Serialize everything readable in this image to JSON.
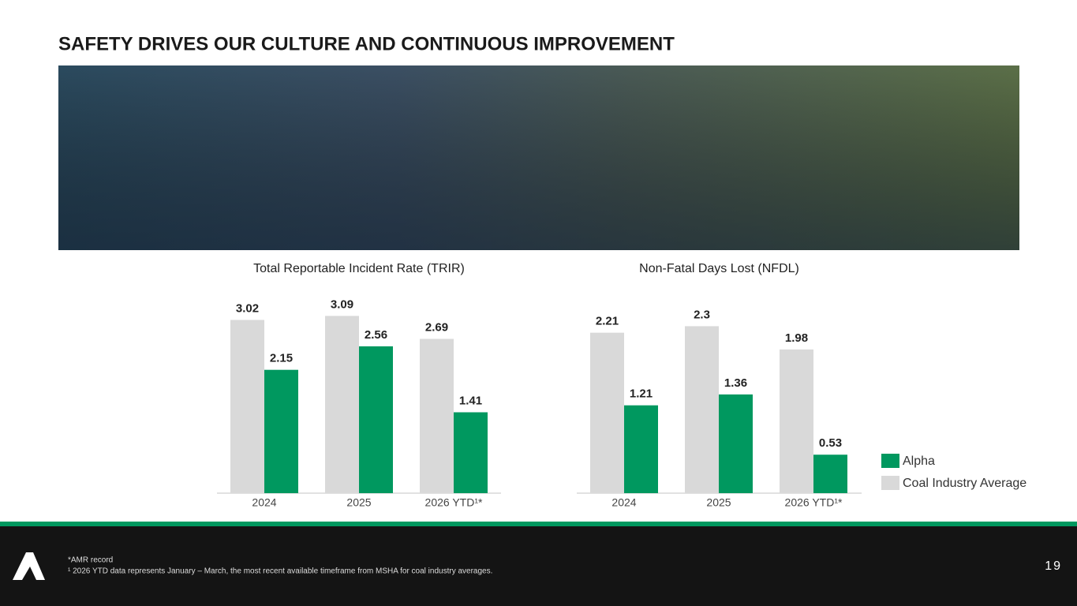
{
  "title": "SAFETY DRIVES OUR CULTURE AND CONTINUOUS IMPROVEMENT",
  "chart_data": [
    {
      "type": "bar",
      "title": "Total Reportable Incident Rate (TRIR)",
      "categories": [
        "2024",
        "2025",
        "2026 YTD¹*"
      ],
      "series": [
        {
          "color": "#d9d9d9",
          "values": [
            3.02,
            3.09,
            2.69
          ]
        },
        {
          "color": "#00985f",
          "values": [
            2.15,
            2.56,
            1.41
          ]
        }
      ]
    },
    {
      "type": "bar",
      "title": "Non-Fatal Days Lost (NFDL)",
      "categories": [
        "2024",
        "2025",
        "2026 YTD¹*"
      ],
      "series": [
        {
          "name": "Coal Industry Average",
          "color": "#d9d9d9",
          "values": [
            2.21,
            2.3,
            1.98
          ]
        },
        {
          "name": "Alpha",
          "color": "#00985f",
          "values": [
            1.21,
            1.36,
            0.53
          ]
        }
      ],
      "legend": "right"
    }
  ],
  "footnotes": [
    "*AMR record",
    "¹ 2026 YTD data represents January – March, the most recent available timeframe from MSHA for coal industry averages."
  ],
  "page_number": "19"
}
